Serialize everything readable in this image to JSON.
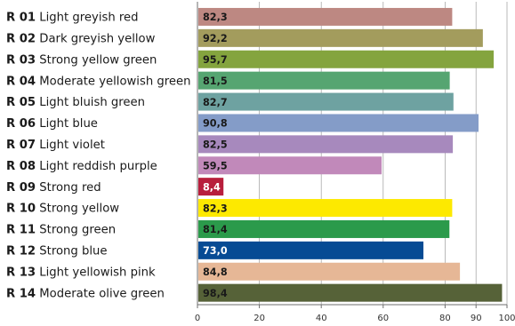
{
  "chart_data": {
    "type": "bar",
    "orientation": "horizontal",
    "categories": [
      {
        "code": "R 01",
        "name": "Light greyish red"
      },
      {
        "code": "R 02",
        "name": "Dark greyish yellow"
      },
      {
        "code": "R 03",
        "name": "Strong yellow green"
      },
      {
        "code": "R 04",
        "name": "Moderate yellowish green"
      },
      {
        "code": "R 05",
        "name": "Light bluish green"
      },
      {
        "code": "R 06",
        "name": "Light blue"
      },
      {
        "code": "R 07",
        "name": "Light violet"
      },
      {
        "code": "R 08",
        "name": "Light reddish purple"
      },
      {
        "code": "R 09",
        "name": "Strong red"
      },
      {
        "code": "R 10",
        "name": "Strong yellow"
      },
      {
        "code": "R 11",
        "name": "Strong green"
      },
      {
        "code": "R 12",
        "name": "Strong blue"
      },
      {
        "code": "R 13",
        "name": "Light yellowish pink"
      },
      {
        "code": "R 14",
        "name": "Moderate olive green"
      }
    ],
    "values": [
      82.3,
      92.2,
      95.7,
      81.5,
      82.7,
      90.8,
      82.5,
      59.5,
      8.4,
      82.3,
      81.4,
      73.0,
      84.8,
      98.4
    ],
    "value_labels": [
      "82,3",
      "92,2",
      "95,7",
      "81,5",
      "82,7",
      "90,8",
      "82,5",
      "59,5",
      "8,4",
      "82,3",
      "81,4",
      "73,0",
      "84,8",
      "98,4"
    ],
    "colors": [
      "#bd8882",
      "#a39c5d",
      "#84a43e",
      "#56a571",
      "#6ea2a1",
      "#849cc8",
      "#a789bd",
      "#c189ba",
      "#b81e3c",
      "#fde900",
      "#2b9a4b",
      "#064b94",
      "#e6b796",
      "#566238"
    ],
    "label_colors": [
      "#1a1a1a",
      "#1a1a1a",
      "#1a1a1a",
      "#1a1a1a",
      "#1a1a1a",
      "#1a1a1a",
      "#1a1a1a",
      "#1a1a1a",
      "#ffffff",
      "#1a1a1a",
      "#1a1a1a",
      "#ffffff",
      "#1a1a1a",
      "#1a1a1a"
    ],
    "xlim": [
      0,
      100
    ],
    "xticks": [
      0,
      20,
      40,
      60,
      80,
      90,
      100
    ],
    "grid": true,
    "title": "",
    "xlabel": "",
    "ylabel": ""
  }
}
